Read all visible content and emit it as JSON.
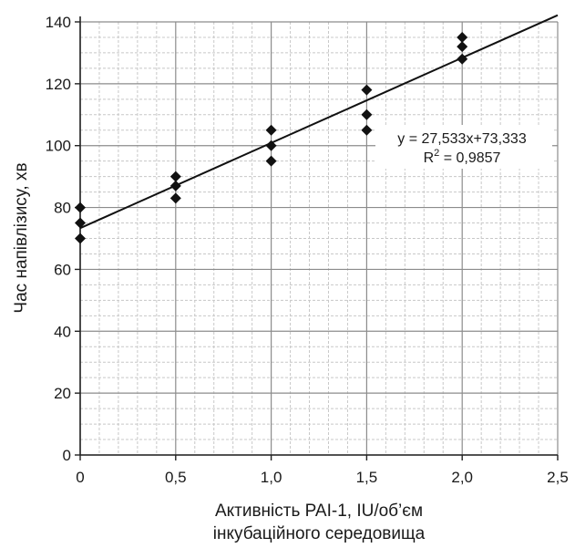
{
  "chart_data": {
    "type": "scatter",
    "xlabel_lines": [
      "Активність PAI-1, IU/об’єм",
      "інкубаційного середовища"
    ],
    "ylabel": "Час напівлізису, хв",
    "xlim": [
      0,
      2.5
    ],
    "ylim": [
      0,
      140
    ],
    "x_ticks": [
      {
        "value": 0,
        "label": "0"
      },
      {
        "value": 0.5,
        "label": "0,5"
      },
      {
        "value": 1.0,
        "label": "1,0"
      },
      {
        "value": 1.5,
        "label": "1,5"
      },
      {
        "value": 2.0,
        "label": "2,0"
      },
      {
        "value": 2.5,
        "label": "2,5"
      }
    ],
    "y_ticks": [
      {
        "value": 0,
        "label": "0"
      },
      {
        "value": 20,
        "label": "20"
      },
      {
        "value": 40,
        "label": "40"
      },
      {
        "value": 60,
        "label": "60"
      },
      {
        "value": 80,
        "label": "80"
      },
      {
        "value": 100,
        "label": "100"
      },
      {
        "value": 120,
        "label": "120"
      },
      {
        "value": 140,
        "label": "140"
      }
    ],
    "grid": true,
    "points": [
      {
        "x": 0,
        "y": 80
      },
      {
        "x": 0,
        "y": 75
      },
      {
        "x": 0,
        "y": 70
      },
      {
        "x": 0.5,
        "y": 90
      },
      {
        "x": 0.5,
        "y": 87
      },
      {
        "x": 0.5,
        "y": 83
      },
      {
        "x": 1.0,
        "y": 105
      },
      {
        "x": 1.0,
        "y": 100
      },
      {
        "x": 1.0,
        "y": 95
      },
      {
        "x": 1.5,
        "y": 118
      },
      {
        "x": 1.5,
        "y": 110
      },
      {
        "x": 1.5,
        "y": 105
      },
      {
        "x": 2.0,
        "y": 135
      },
      {
        "x": 2.0,
        "y": 132
      },
      {
        "x": 2.0,
        "y": 128
      }
    ],
    "trendline": {
      "slope": 27.533,
      "intercept": 73.333,
      "x_range": [
        0,
        2.5
      ]
    },
    "equation_text": "y = 27,533x+73,333",
    "r2_prefix": "R",
    "r2_superscript": "2",
    "r2_value_text": " = 0,9857",
    "colors": {
      "marker": "#111111",
      "line": "#111111",
      "grid_major": "#8c8c8c",
      "grid_minor": "#c8c8c8",
      "axis": "#222222"
    }
  }
}
